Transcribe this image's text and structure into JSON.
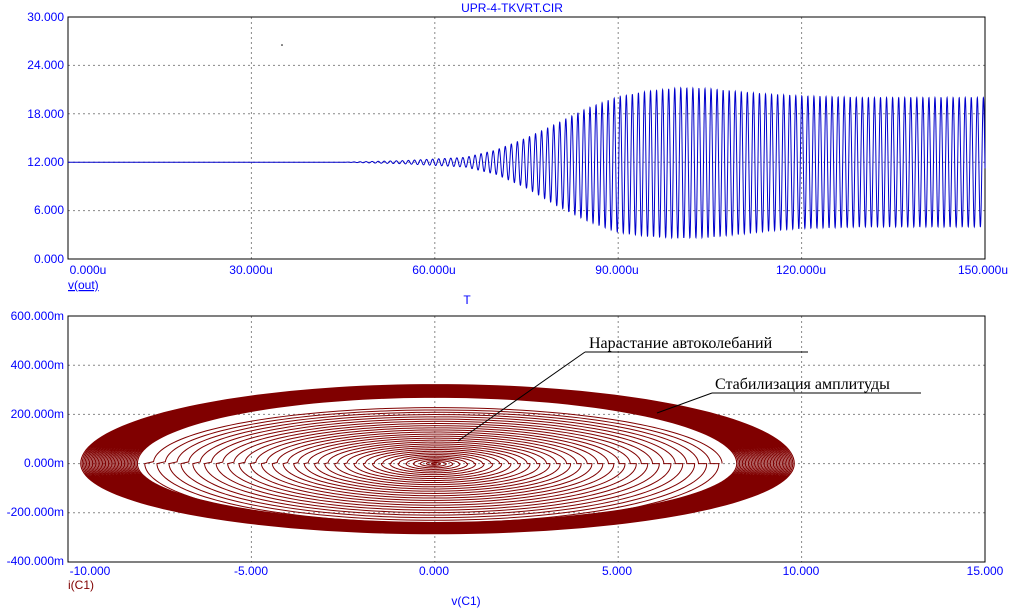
{
  "top_chart": {
    "title": "UPR-4-TKVRT.CIR",
    "y_ticks": [
      "30.000",
      "24.000",
      "18.000",
      "12.000",
      "6.000",
      "0.000"
    ],
    "x_ticks": [
      "0.000u",
      "30.000u",
      "60.000u",
      "90.000u",
      "120.000u",
      "150.000u"
    ],
    "y_label": "v(out)",
    "x_label": "T",
    "trace_color": "#0000cc"
  },
  "bottom_chart": {
    "y_ticks": [
      "600.000m",
      "400.000m",
      "200.000m",
      "0.000m",
      "-200.000m",
      "-400.000m"
    ],
    "x_ticks": [
      "-10.000",
      "-5.000",
      "0.000",
      "5.000",
      "10.000",
      "15.000"
    ],
    "y_label": "i(C1)",
    "x_label": "v(C1)",
    "trace_color": "#800000",
    "annotations": {
      "growth": "Нарастание автоколебаний",
      "stabilization": "Стабилизация амплитуды"
    }
  },
  "chart_data": [
    {
      "type": "line",
      "title": "UPR-4-TKVRT.CIR",
      "xlabel": "T",
      "ylabel": "v(out)",
      "x_unit": "us",
      "xlim": [
        0,
        150
      ],
      "ylim": [
        0,
        30
      ],
      "grid": true,
      "series": [
        {
          "name": "v(out)",
          "x": [
            0,
            45,
            55,
            65,
            70,
            75,
            80,
            85,
            90,
            95,
            100,
            105,
            110,
            115,
            120,
            125,
            130,
            135,
            140,
            145,
            150
          ],
          "baseline": [
            12,
            12,
            12,
            12,
            12,
            12,
            12,
            12,
            12,
            12,
            12,
            12,
            12,
            12,
            12,
            12,
            12,
            12,
            12,
            12,
            12
          ],
          "upper_envelope": [
            12,
            12,
            12.2,
            12.6,
            13.5,
            15,
            16.8,
            18.7,
            20.1,
            20.8,
            21.2,
            21.1,
            20.7,
            20.4,
            20.2,
            20.1,
            20.0,
            20.0,
            20.0,
            20.0,
            20.0
          ],
          "lower_envelope": [
            12,
            12,
            11.8,
            11.4,
            10.5,
            8.8,
            6.6,
            4.7,
            3.3,
            2.8,
            2.6,
            2.7,
            3.1,
            3.5,
            3.8,
            3.9,
            4.0,
            4.0,
            4.0,
            4.0,
            4.0
          ]
        }
      ]
    },
    {
      "type": "line",
      "xlabel": "v(C1)",
      "ylabel": "i(C1)",
      "xlim": [
        -10,
        15
      ],
      "ylim": [
        -0.4,
        0.6
      ],
      "grid": true,
      "series": [
        {
          "name": "i(C1) vs v(C1)",
          "shape": "growing spiral to limit cycle",
          "center": [
            0,
            0
          ],
          "final_v_extent": [
            -9.5,
            9.8
          ],
          "final_i_extent": [
            -0.32,
            0.28
          ]
        }
      ],
      "annotations": [
        "Нарастание автоколебаний",
        "Стабилизация амплитуды"
      ]
    }
  ]
}
